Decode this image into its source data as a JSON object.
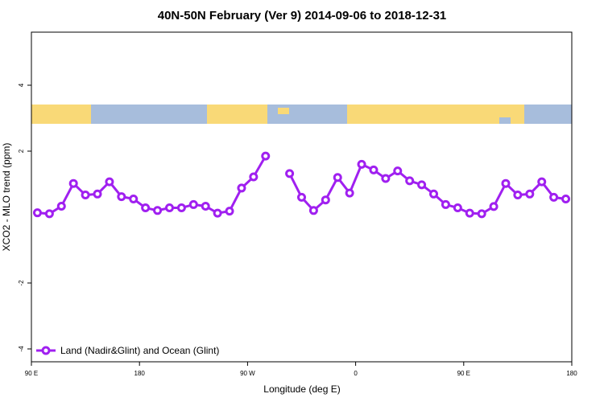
{
  "chart_data": {
    "type": "line",
    "title": "40N-50N February (Ver 9)   2014-09-06 to 2018-12-31",
    "x_label": "Longitude (deg E)",
    "y_label": "XCO2 - MLO trend (ppm)",
    "x": [
      95,
      105,
      115,
      125,
      135,
      145,
      155,
      165,
      175,
      185,
      195,
      205,
      215,
      225,
      235,
      245,
      255,
      265,
      275,
      285,
      295,
      305,
      315,
      325,
      335,
      345,
      355,
      365,
      375,
      385,
      395,
      405,
      415,
      425,
      435,
      445,
      455,
      465,
      475,
      485,
      495,
      505,
      515,
      525,
      535
    ],
    "series": [
      {
        "name": "Land (Nadir&Glint) and Ocean (Glint)",
        "color": "#a020f0",
        "values": [
          0.13,
          0.1,
          0.33,
          1.02,
          0.67,
          0.7,
          1.07,
          0.62,
          0.55,
          0.28,
          0.2,
          0.28,
          0.28,
          0.38,
          0.33,
          0.12,
          0.18,
          0.88,
          1.22,
          1.85,
          null,
          1.32,
          0.6,
          0.2,
          0.52,
          1.2,
          0.73,
          1.6,
          1.43,
          1.17,
          1.4,
          1.1,
          0.98,
          0.7,
          0.38,
          0.28,
          0.12,
          0.1,
          0.32,
          1.02,
          0.67,
          0.7,
          1.07,
          0.6,
          0.55
        ]
      }
    ],
    "xlim": [
      90,
      540
    ],
    "xticks": [
      {
        "value": 90,
        "label": "90 E"
      },
      180,
      {
        "value": 270,
        "label": "90 W"
      },
      {
        "value": 360,
        "label": "0"
      },
      {
        "value": 450,
        "label": "90 E"
      },
      {
        "value": 540,
        "label": "180"
      }
    ],
    "ylim": [
      -4.39,
      5.61
    ],
    "yticks": [
      -4,
      -2,
      2,
      4
    ],
    "legend": "bottom-left"
  }
}
